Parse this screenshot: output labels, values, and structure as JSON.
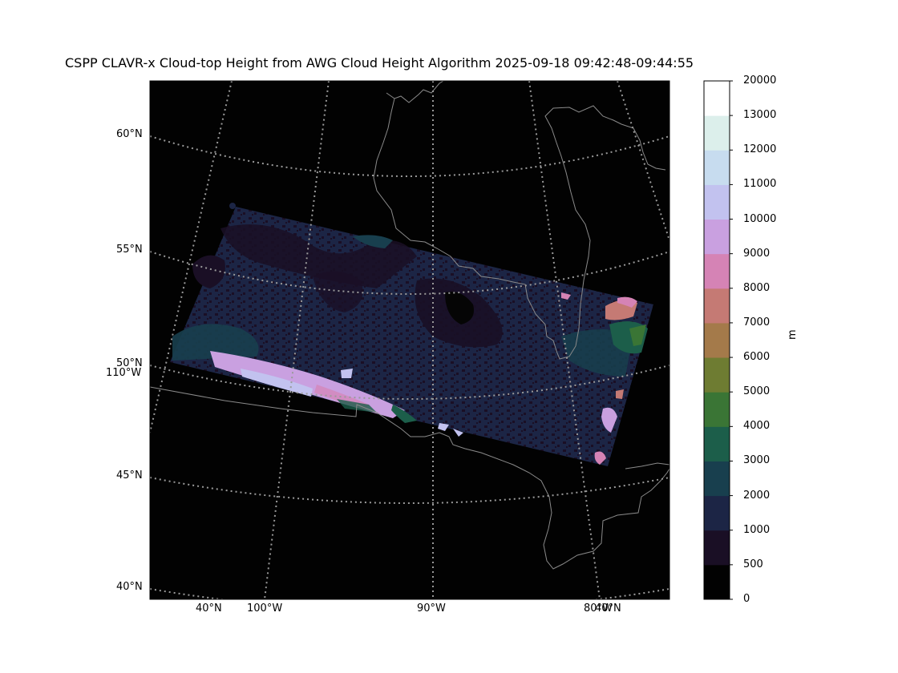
{
  "title": "CSPP CLAVR-x Cloud-top Height from AWG Cloud Height Algorithm 2025-09-18 09:42:48-09:44:55",
  "map": {
    "background": "#020202",
    "coast_color": "#8a8a8a",
    "grid_color": "#9a9a9a",
    "lat_labels": [
      "60°N",
      "55°N",
      "50°N",
      "45°N",
      "40°N"
    ],
    "lon_label_left": "110°W",
    "bottom_labels": [
      "40°N",
      "100°W",
      "90°W",
      "80°W",
      "40°N"
    ]
  },
  "colorbar": {
    "unit": "m",
    "levels": [
      "0",
      "500",
      "1000",
      "2000",
      "3000",
      "4000",
      "5000",
      "6000",
      "7000",
      "8000",
      "9000",
      "10000",
      "11000",
      "12000",
      "13000",
      "20000"
    ],
    "colors": [
      "#020202",
      "#1a0f25",
      "#1c2545",
      "#183f4e",
      "#1c5e4a",
      "#3a7535",
      "#6e7c32",
      "#a47a4a",
      "#c57a74",
      "#d583b5",
      "#c9a0e0",
      "#c2c2ef",
      "#c7dcef",
      "#dcefeb",
      "#ffffff"
    ]
  }
}
